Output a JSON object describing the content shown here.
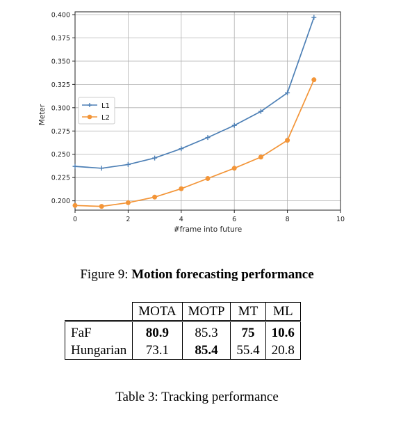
{
  "chart_data": {
    "type": "line",
    "xlabel": "#frame into future",
    "ylabel": "Meter",
    "xlim": [
      0,
      10
    ],
    "ylim": [
      0.19,
      0.403
    ],
    "x_ticks": [
      "0",
      "2",
      "4",
      "6",
      "8",
      "10"
    ],
    "y_ticks": [
      "0.200",
      "0.225",
      "0.250",
      "0.275",
      "0.300",
      "0.325",
      "0.350",
      "0.375",
      "0.400"
    ],
    "grid": true,
    "legend_position": "center-left",
    "x": [
      0,
      1,
      2,
      3,
      4,
      5,
      6,
      7,
      8,
      9
    ],
    "series": [
      {
        "name": "L1",
        "marker": "plus",
        "color": "#4c7fb5",
        "values": [
          0.237,
          0.235,
          0.239,
          0.246,
          0.256,
          0.268,
          0.281,
          0.296,
          0.316,
          0.397
        ]
      },
      {
        "name": "L2",
        "marker": "circle",
        "color": "#f39538",
        "values": [
          0.195,
          0.194,
          0.198,
          0.204,
          0.213,
          0.224,
          0.235,
          0.247,
          0.265,
          0.33
        ]
      }
    ]
  },
  "figure_caption": {
    "label": "Figure 9:",
    "title": "Motion forecasting performance"
  },
  "table": {
    "headers": [
      "MOTA",
      "MOTP",
      "MT",
      "ML"
    ],
    "rows": [
      {
        "method": "FaF",
        "cells": [
          "80.9",
          "85.3",
          "75",
          "10.6"
        ],
        "bold": [
          true,
          false,
          true,
          true
        ]
      },
      {
        "method": "Hungarian",
        "cells": [
          "73.1",
          "85.4",
          "55.4",
          "20.8"
        ],
        "bold": [
          false,
          true,
          false,
          false
        ]
      }
    ],
    "caption": "Table 3: Tracking performance"
  }
}
